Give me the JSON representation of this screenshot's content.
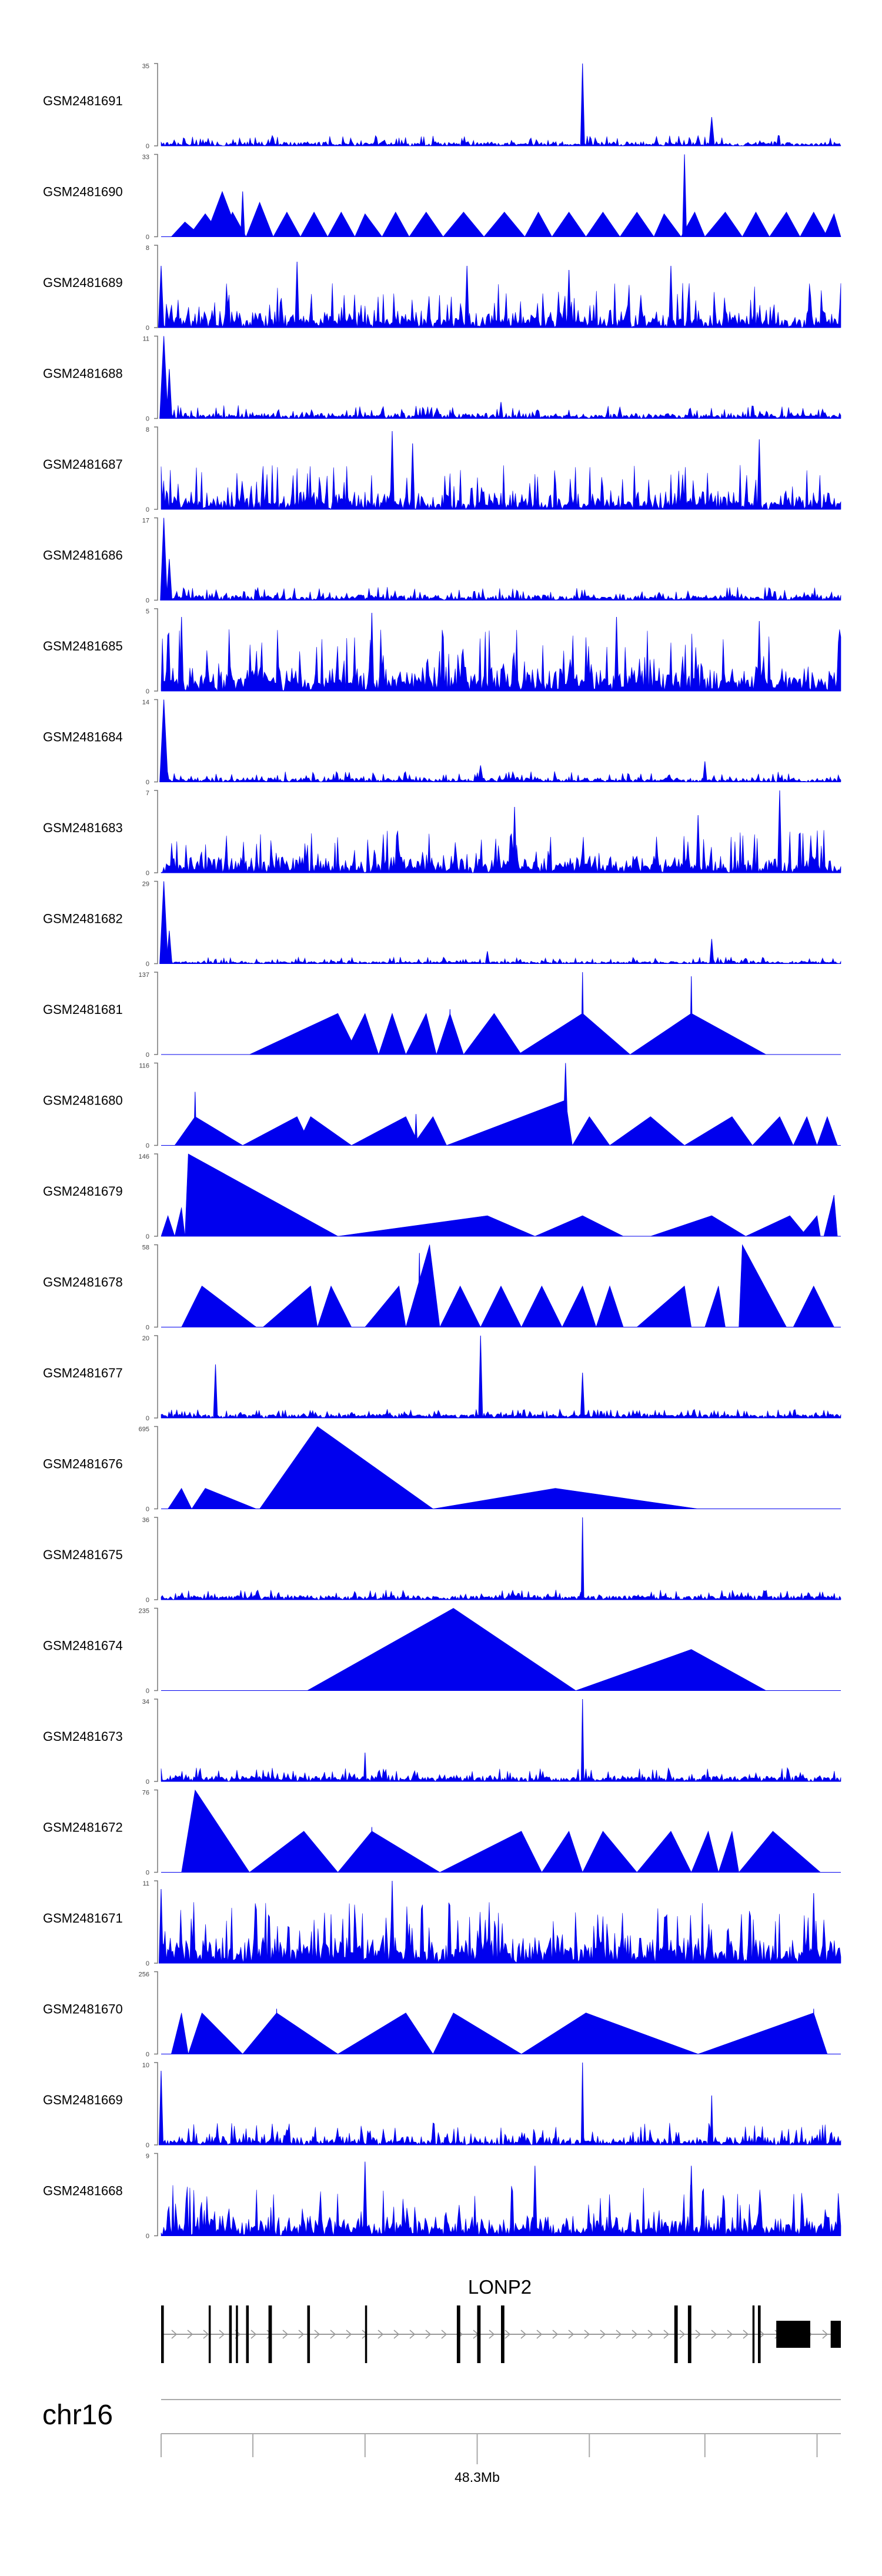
{
  "chart_data": {
    "type": "area",
    "title": "",
    "track_type": "coverage",
    "color": "#0000ee",
    "tracks": [
      {
        "sample": "GSM2481691",
        "ymin": 0,
        "ymax": 35,
        "pattern": "noise",
        "noise": 0.1,
        "base": 0.03,
        "peaks": [
          {
            "x": 0.62,
            "v": 1.0,
            "w": 0.003
          },
          {
            "x": 0.81,
            "v": 0.35,
            "w": 0.004
          },
          {
            "x": 0.79,
            "v": 0.12,
            "w": 0.004
          }
        ]
      },
      {
        "sample": "GSM2481690",
        "ymin": 0,
        "ymax": 33,
        "pattern": "triangles",
        "segments": [
          [
            0.015,
            0.035,
            0.06,
            0.18
          ],
          [
            0.04,
            0.065,
            0.09,
            0.28
          ],
          [
            0.065,
            0.09,
            0.115,
            0.55
          ],
          [
            0.09,
            0.105,
            0.125,
            0.3
          ],
          [
            0.125,
            0.145,
            0.165,
            0.42
          ],
          [
            0.165,
            0.185,
            0.205,
            0.3
          ],
          [
            0.205,
            0.225,
            0.245,
            0.3
          ],
          [
            0.245,
            0.265,
            0.285,
            0.3
          ],
          [
            0.285,
            0.3,
            0.325,
            0.28
          ],
          [
            0.325,
            0.345,
            0.365,
            0.3
          ],
          [
            0.365,
            0.39,
            0.415,
            0.3
          ],
          [
            0.415,
            0.445,
            0.475,
            0.3
          ],
          [
            0.475,
            0.505,
            0.535,
            0.3
          ],
          [
            0.535,
            0.555,
            0.575,
            0.3
          ],
          [
            0.575,
            0.6,
            0.625,
            0.3
          ],
          [
            0.625,
            0.65,
            0.675,
            0.3
          ],
          [
            0.675,
            0.7,
            0.725,
            0.3
          ],
          [
            0.725,
            0.74,
            0.765,
            0.28
          ],
          [
            0.765,
            0.785,
            0.8,
            0.3
          ],
          [
            0.8,
            0.83,
            0.855,
            0.3
          ],
          [
            0.855,
            0.875,
            0.895,
            0.3
          ],
          [
            0.895,
            0.92,
            0.94,
            0.3
          ],
          [
            0.94,
            0.96,
            0.98,
            0.3
          ],
          [
            0.975,
            0.99,
            1.0,
            0.28
          ]
        ],
        "peaks": [
          {
            "x": 0.77,
            "v": 1.0,
            "w": 0.003
          },
          {
            "x": 0.12,
            "v": 0.55,
            "w": 0.003
          }
        ]
      },
      {
        "sample": "GSM2481689",
        "ymin": 0,
        "ymax": 8,
        "pattern": "noise",
        "noise": 0.45,
        "base": 0.1,
        "peaks": [
          {
            "x": 0.0,
            "v": 0.75,
            "w": 0.004
          },
          {
            "x": 0.2,
            "v": 0.8,
            "w": 0.003
          },
          {
            "x": 0.45,
            "v": 0.75,
            "w": 0.003
          },
          {
            "x": 0.6,
            "v": 0.7,
            "w": 0.003
          },
          {
            "x": 0.75,
            "v": 0.75,
            "w": 0.003
          }
        ]
      },
      {
        "sample": "GSM2481688",
        "ymin": 0,
        "ymax": 11,
        "pattern": "noise",
        "noise": 0.12,
        "base": 0.04,
        "peaks": [
          {
            "x": 0.004,
            "v": 1.0,
            "w": 0.006
          },
          {
            "x": 0.012,
            "v": 0.6,
            "w": 0.004
          },
          {
            "x": 0.5,
            "v": 0.2,
            "w": 0.003
          }
        ]
      },
      {
        "sample": "GSM2481687",
        "ymin": 0,
        "ymax": 8,
        "pattern": "noise",
        "noise": 0.45,
        "base": 0.1,
        "peaks": [
          {
            "x": 0.34,
            "v": 0.95,
            "w": 0.003
          },
          {
            "x": 0.37,
            "v": 0.8,
            "w": 0.003
          },
          {
            "x": 0.88,
            "v": 0.85,
            "w": 0.003
          }
        ]
      },
      {
        "sample": "GSM2481686",
        "ymin": 0,
        "ymax": 17,
        "pattern": "noise",
        "noise": 0.12,
        "base": 0.04,
        "peaks": [
          {
            "x": 0.004,
            "v": 1.0,
            "w": 0.005
          },
          {
            "x": 0.012,
            "v": 0.5,
            "w": 0.004
          }
        ]
      },
      {
        "sample": "GSM2481685",
        "ymin": 0,
        "ymax": 5,
        "pattern": "noise",
        "noise": 0.6,
        "base": 0.15,
        "peaks": [
          {
            "x": 0.03,
            "v": 0.9,
            "w": 0.003
          },
          {
            "x": 0.31,
            "v": 0.95,
            "w": 0.003
          },
          {
            "x": 0.67,
            "v": 0.9,
            "w": 0.003
          },
          {
            "x": 0.88,
            "v": 0.85,
            "w": 0.003
          }
        ]
      },
      {
        "sample": "GSM2481684",
        "ymin": 0,
        "ymax": 14,
        "pattern": "noise",
        "noise": 0.1,
        "base": 0.03,
        "peaks": [
          {
            "x": 0.004,
            "v": 1.0,
            "w": 0.006
          },
          {
            "x": 0.47,
            "v": 0.2,
            "w": 0.004
          },
          {
            "x": 0.8,
            "v": 0.25,
            "w": 0.003
          }
        ]
      },
      {
        "sample": "GSM2481683",
        "ymin": 0,
        "ymax": 7,
        "pattern": "noise",
        "noise": 0.42,
        "base": 0.1,
        "peaks": [
          {
            "x": 0.91,
            "v": 1.0,
            "w": 0.003
          },
          {
            "x": 0.52,
            "v": 0.8,
            "w": 0.003
          },
          {
            "x": 0.79,
            "v": 0.7,
            "w": 0.003
          }
        ]
      },
      {
        "sample": "GSM2481682",
        "ymin": 0,
        "ymax": 29,
        "pattern": "noise",
        "noise": 0.06,
        "base": 0.02,
        "peaks": [
          {
            "x": 0.004,
            "v": 1.0,
            "w": 0.006
          },
          {
            "x": 0.012,
            "v": 0.4,
            "w": 0.004
          },
          {
            "x": 0.81,
            "v": 0.3,
            "w": 0.003
          },
          {
            "x": 0.48,
            "v": 0.15,
            "w": 0.003
          }
        ]
      },
      {
        "sample": "GSM2481681",
        "ymin": 0,
        "ymax": 137,
        "pattern": "triangles",
        "segments": [
          [
            0.13,
            0.26,
            0.29,
            0.5
          ],
          [
            0.27,
            0.3,
            0.32,
            0.5
          ],
          [
            0.32,
            0.34,
            0.36,
            0.5
          ],
          [
            0.36,
            0.39,
            0.405,
            0.5
          ],
          [
            0.405,
            0.425,
            0.445,
            0.5
          ],
          [
            0.445,
            0.49,
            0.53,
            0.5
          ],
          [
            0.525,
            0.62,
            0.69,
            0.5
          ],
          [
            0.69,
            0.78,
            0.89,
            0.5
          ]
        ],
        "peaks": [
          {
            "x": 0.62,
            "v": 1.0,
            "w": 0.002
          },
          {
            "x": 0.78,
            "v": 0.95,
            "w": 0.002
          },
          {
            "x": 0.425,
            "v": 0.55,
            "w": 0.002
          }
        ]
      },
      {
        "sample": "GSM2481680",
        "ymin": 0,
        "ymax": 116,
        "pattern": "triangles",
        "segments": [
          [
            0.02,
            0.05,
            0.12,
            0.35
          ],
          [
            0.12,
            0.2,
            0.22,
            0.35
          ],
          [
            0.2,
            0.22,
            0.28,
            0.35
          ],
          [
            0.28,
            0.36,
            0.38,
            0.35
          ],
          [
            0.37,
            0.4,
            0.42,
            0.35
          ],
          [
            0.42,
            0.595,
            0.605,
            0.55
          ],
          [
            0.605,
            0.63,
            0.66,
            0.35
          ],
          [
            0.66,
            0.72,
            0.77,
            0.35
          ],
          [
            0.77,
            0.84,
            0.87,
            0.35
          ],
          [
            0.87,
            0.91,
            0.93,
            0.35
          ],
          [
            0.93,
            0.95,
            0.965,
            0.35
          ],
          [
            0.965,
            0.98,
            0.995,
            0.35
          ]
        ],
        "peaks": [
          {
            "x": 0.05,
            "v": 0.65,
            "w": 0.002
          },
          {
            "x": 0.595,
            "v": 1.0,
            "w": 0.004
          },
          {
            "x": 0.375,
            "v": 0.38,
            "w": 0.002
          }
        ]
      },
      {
        "sample": "GSM2481679",
        "ymin": 0,
        "ymax": 146,
        "pattern": "triangles",
        "segments": [
          [
            0.0,
            0.01,
            0.02,
            0.25
          ],
          [
            0.02,
            0.03,
            0.035,
            0.35
          ],
          [
            0.035,
            0.04,
            0.26,
            1.0
          ],
          [
            0.26,
            0.48,
            0.55,
            0.25
          ],
          [
            0.55,
            0.62,
            0.68,
            0.25
          ],
          [
            0.72,
            0.81,
            0.86,
            0.25
          ],
          [
            0.86,
            0.925,
            0.95,
            0.25
          ],
          [
            0.94,
            0.965,
            0.97,
            0.25
          ],
          [
            0.975,
            0.99,
            0.995,
            0.5
          ]
        ],
        "peaks": [
          {
            "x": 0.99,
            "v": 0.5,
            "w": 0.002
          }
        ]
      },
      {
        "sample": "GSM2481678",
        "ymin": 0,
        "ymax": 58,
        "pattern": "triangles",
        "segments": [
          [
            0.03,
            0.06,
            0.14,
            0.5
          ],
          [
            0.15,
            0.22,
            0.23,
            0.5
          ],
          [
            0.23,
            0.25,
            0.28,
            0.5
          ],
          [
            0.3,
            0.35,
            0.36,
            0.5
          ],
          [
            0.36,
            0.395,
            0.41,
            1.0
          ],
          [
            0.41,
            0.44,
            0.47,
            0.5
          ],
          [
            0.47,
            0.5,
            0.53,
            0.5
          ],
          [
            0.53,
            0.56,
            0.59,
            0.5
          ],
          [
            0.59,
            0.62,
            0.64,
            0.5
          ],
          [
            0.64,
            0.66,
            0.68,
            0.5
          ],
          [
            0.7,
            0.77,
            0.78,
            0.5
          ],
          [
            0.8,
            0.82,
            0.83,
            0.5
          ],
          [
            0.85,
            0.855,
            0.92,
            1.0
          ],
          [
            0.93,
            0.96,
            0.99,
            0.5
          ]
        ],
        "peaks": [
          {
            "x": 0.395,
            "v": 1.0,
            "w": 0.002
          },
          {
            "x": 0.38,
            "v": 0.9,
            "w": 0.002
          }
        ]
      },
      {
        "sample": "GSM2481677",
        "ymin": 0,
        "ymax": 20,
        "pattern": "noise",
        "noise": 0.07,
        "base": 0.04,
        "peaks": [
          {
            "x": 0.08,
            "v": 0.65,
            "w": 0.003
          },
          {
            "x": 0.47,
            "v": 1.0,
            "w": 0.003
          },
          {
            "x": 0.62,
            "v": 0.55,
            "w": 0.003
          }
        ]
      },
      {
        "sample": "GSM2481676",
        "ymin": 0,
        "ymax": 695,
        "pattern": "triangles",
        "segments": [
          [
            0.01,
            0.03,
            0.045,
            0.25
          ],
          [
            0.045,
            0.065,
            0.14,
            0.25
          ],
          [
            0.145,
            0.23,
            0.4,
            1.0
          ],
          [
            0.4,
            0.58,
            0.79,
            0.25
          ]
        ],
        "peaks": []
      },
      {
        "sample": "GSM2481675",
        "ymin": 0,
        "ymax": 36,
        "pattern": "noise",
        "noise": 0.08,
        "base": 0.04,
        "peaks": [
          {
            "x": 0.62,
            "v": 1.0,
            "w": 0.002
          }
        ]
      },
      {
        "sample": "GSM2481674",
        "ymin": 0,
        "ymax": 235,
        "pattern": "triangles",
        "segments": [
          [
            0.215,
            0.43,
            0.61,
            1.0
          ],
          [
            0.61,
            0.78,
            0.89,
            0.5
          ]
        ],
        "peaks": []
      },
      {
        "sample": "GSM2481673",
        "ymin": 0,
        "ymax": 34,
        "pattern": "noise",
        "noise": 0.12,
        "base": 0.05,
        "peaks": [
          {
            "x": 0.62,
            "v": 1.0,
            "w": 0.002
          },
          {
            "x": 0.3,
            "v": 0.35,
            "w": 0.002
          }
        ]
      },
      {
        "sample": "GSM2481672",
        "ymin": 0,
        "ymax": 76,
        "pattern": "triangles",
        "segments": [
          [
            0.03,
            0.05,
            0.13,
            1.0
          ],
          [
            0.13,
            0.21,
            0.26,
            0.5
          ],
          [
            0.26,
            0.31,
            0.41,
            0.5
          ],
          [
            0.41,
            0.53,
            0.56,
            0.5
          ],
          [
            0.56,
            0.6,
            0.62,
            0.5
          ],
          [
            0.62,
            0.65,
            0.7,
            0.5
          ],
          [
            0.7,
            0.75,
            0.78,
            0.5
          ],
          [
            0.78,
            0.805,
            0.82,
            0.5
          ],
          [
            0.82,
            0.84,
            0.85,
            0.5
          ],
          [
            0.85,
            0.9,
            0.97,
            0.5
          ]
        ],
        "peaks": [
          {
            "x": 0.31,
            "v": 0.55,
            "w": 0.002
          }
        ]
      },
      {
        "sample": "GSM2481671",
        "ymin": 0,
        "ymax": 11,
        "pattern": "noise",
        "noise": 0.55,
        "base": 0.2,
        "peaks": [
          {
            "x": 0.0,
            "v": 0.9,
            "w": 0.003
          },
          {
            "x": 0.34,
            "v": 1.0,
            "w": 0.003
          },
          {
            "x": 0.96,
            "v": 0.85,
            "w": 0.003
          }
        ]
      },
      {
        "sample": "GSM2481670",
        "ymin": 0,
        "ymax": 256,
        "pattern": "triangles",
        "segments": [
          [
            0.015,
            0.03,
            0.04,
            0.5
          ],
          [
            0.04,
            0.06,
            0.12,
            0.5
          ],
          [
            0.12,
            0.17,
            0.26,
            0.5
          ],
          [
            0.26,
            0.36,
            0.4,
            0.5
          ],
          [
            0.4,
            0.43,
            0.53,
            0.5
          ],
          [
            0.53,
            0.625,
            0.79,
            0.5
          ],
          [
            0.79,
            0.96,
            0.98,
            0.5
          ]
        ],
        "peaks": [
          {
            "x": 0.17,
            "v": 0.55,
            "w": 0.002
          },
          {
            "x": 0.96,
            "v": 0.55,
            "w": 0.002
          }
        ]
      },
      {
        "sample": "GSM2481669",
        "ymin": 0,
        "ymax": 10,
        "pattern": "noise",
        "noise": 0.22,
        "base": 0.05,
        "peaks": [
          {
            "x": 0.0,
            "v": 0.9,
            "w": 0.003
          },
          {
            "x": 0.62,
            "v": 1.0,
            "w": 0.002
          },
          {
            "x": 0.81,
            "v": 0.6,
            "w": 0.002
          }
        ]
      },
      {
        "sample": "GSM2481668",
        "ymin": 0,
        "ymax": 9,
        "pattern": "noise",
        "noise": 0.5,
        "base": 0.12,
        "peaks": [
          {
            "x": 0.3,
            "v": 0.9,
            "w": 0.003
          },
          {
            "x": 0.55,
            "v": 0.85,
            "w": 0.003
          },
          {
            "x": 0.78,
            "v": 0.85,
            "w": 0.003
          }
        ]
      }
    ],
    "gene": {
      "name": "LONP2",
      "strand": "+",
      "exons": [
        [
          0.0,
          0.004
        ],
        [
          0.07,
          0.073
        ],
        [
          0.1,
          0.104
        ],
        [
          0.11,
          0.113
        ],
        [
          0.125,
          0.129
        ],
        [
          0.158,
          0.163
        ],
        [
          0.215,
          0.219
        ],
        [
          0.3,
          0.303
        ],
        [
          0.435,
          0.44
        ],
        [
          0.465,
          0.47
        ],
        [
          0.5,
          0.505
        ],
        [
          0.755,
          0.76
        ],
        [
          0.775,
          0.78
        ],
        [
          0.87,
          0.873
        ],
        [
          0.878,
          0.882
        ],
        [
          0.905,
          0.955
        ],
        [
          0.985,
          1.0
        ]
      ]
    },
    "chromosome": "chr16",
    "axis": {
      "tick_label": "48.3Mb",
      "tick_positions": [
        0.0,
        0.135,
        0.3,
        0.465,
        0.63,
        0.8,
        0.965
      ],
      "labeled_tick": 0.465
    }
  }
}
